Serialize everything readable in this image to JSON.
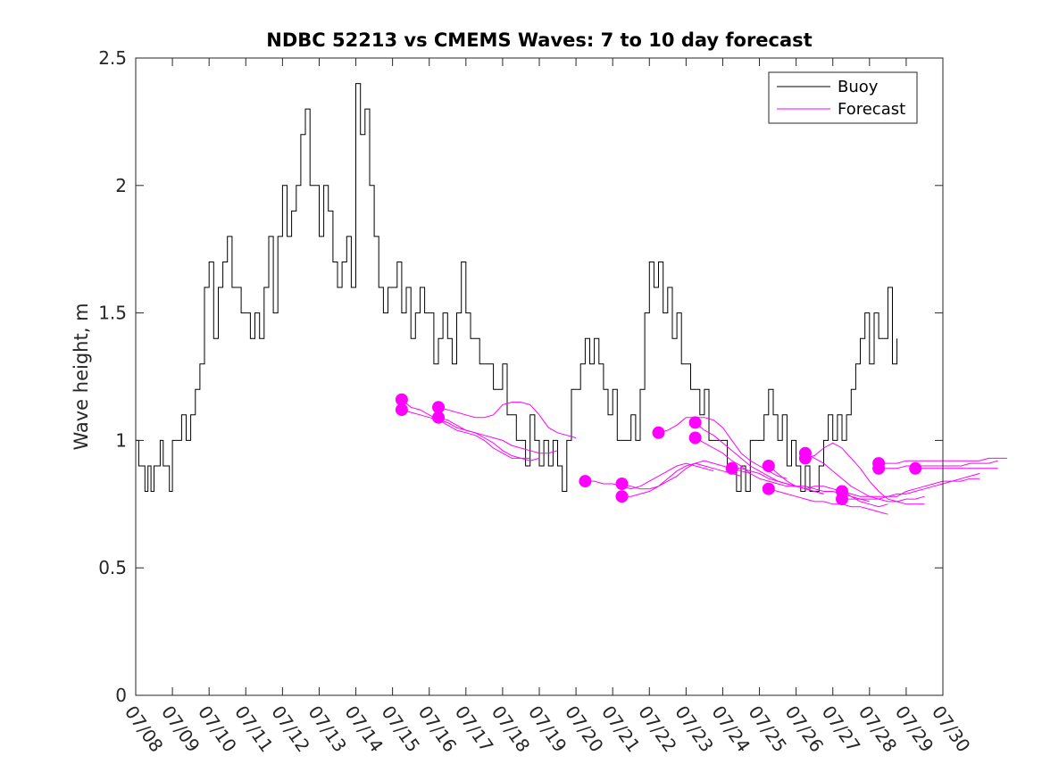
{
  "chart_data": {
    "type": "line",
    "title": "NDBC 52213 vs CMEMS Waves: 7 to 10 day forecast",
    "xlabel": "",
    "ylabel": "Wave height, m",
    "xlim": [
      "07/08",
      "07/30"
    ],
    "ylim": [
      0,
      2.5
    ],
    "grid": false,
    "legend_position": "top-right",
    "x_tick_labels": [
      "07/08",
      "07/09",
      "07/10",
      "07/11",
      "07/12",
      "07/13",
      "07/14",
      "07/15",
      "07/16",
      "07/17",
      "07/18",
      "07/19",
      "07/20",
      "07/21",
      "07/22",
      "07/23",
      "07/24",
      "07/25",
      "07/26",
      "07/27",
      "07/28",
      "07/29",
      "07/30"
    ],
    "y_ticks": [
      0,
      0.5,
      1,
      1.5,
      2,
      2.5
    ],
    "y_tick_labels": [
      "0",
      "0.5",
      "1",
      "1.5",
      "2",
      "2.5"
    ],
    "colors": {
      "buoy": "#000000",
      "forecast": "#ff00ff"
    },
    "legend": [
      {
        "label": "Buoy",
        "series": "buoy"
      },
      {
        "label": "Forecast",
        "series": "forecast"
      }
    ],
    "buoy": {
      "name": "Buoy",
      "points": [
        [
          "07/08 00:00",
          1.0
        ],
        [
          "07/08 02:00",
          0.9
        ],
        [
          "07/08 04:00",
          0.9
        ],
        [
          "07/08 06:00",
          0.8
        ],
        [
          "07/08 08:00",
          0.9
        ],
        [
          "07/08 10:00",
          0.8
        ],
        [
          "07/08 12:00",
          0.9
        ],
        [
          "07/08 14:00",
          0.9
        ],
        [
          "07/08 16:00",
          1.0
        ],
        [
          "07/08 18:00",
          0.9
        ],
        [
          "07/08 20:00",
          0.9
        ],
        [
          "07/08 22:00",
          0.8
        ],
        [
          "07/09 00:00",
          1.0
        ],
        [
          "07/09 03:00",
          1.0
        ],
        [
          "07/09 06:00",
          1.1
        ],
        [
          "07/09 09:00",
          1.0
        ],
        [
          "07/09 12:00",
          1.1
        ],
        [
          "07/09 15:00",
          1.2
        ],
        [
          "07/09 18:00",
          1.3
        ],
        [
          "07/09 21:00",
          1.6
        ],
        [
          "07/10 00:00",
          1.7
        ],
        [
          "07/10 03:00",
          1.4
        ],
        [
          "07/10 06:00",
          1.6
        ],
        [
          "07/10 09:00",
          1.7
        ],
        [
          "07/10 12:00",
          1.8
        ],
        [
          "07/10 15:00",
          1.6
        ],
        [
          "07/10 18:00",
          1.6
        ],
        [
          "07/10 21:00",
          1.5
        ],
        [
          "07/11 00:00",
          1.5
        ],
        [
          "07/11 03:00",
          1.4
        ],
        [
          "07/11 06:00",
          1.5
        ],
        [
          "07/11 09:00",
          1.4
        ],
        [
          "07/11 12:00",
          1.6
        ],
        [
          "07/11 15:00",
          1.8
        ],
        [
          "07/11 18:00",
          1.5
        ],
        [
          "07/11 21:00",
          1.8
        ],
        [
          "07/12 00:00",
          2.0
        ],
        [
          "07/12 03:00",
          1.8
        ],
        [
          "07/12 06:00",
          1.9
        ],
        [
          "07/12 09:00",
          2.0
        ],
        [
          "07/12 12:00",
          2.2
        ],
        [
          "07/12 15:00",
          2.3
        ],
        [
          "07/12 18:00",
          2.0
        ],
        [
          "07/12 21:00",
          2.0
        ],
        [
          "07/13 00:00",
          1.8
        ],
        [
          "07/13 03:00",
          2.0
        ],
        [
          "07/13 06:00",
          1.9
        ],
        [
          "07/13 09:00",
          1.7
        ],
        [
          "07/13 12:00",
          1.6
        ],
        [
          "07/13 15:00",
          1.7
        ],
        [
          "07/13 18:00",
          1.8
        ],
        [
          "07/13 21:00",
          1.6
        ],
        [
          "07/14 00:00",
          2.4
        ],
        [
          "07/14 03:00",
          2.2
        ],
        [
          "07/14 06:00",
          2.3
        ],
        [
          "07/14 09:00",
          2.0
        ],
        [
          "07/14 12:00",
          1.8
        ],
        [
          "07/14 15:00",
          1.6
        ],
        [
          "07/14 18:00",
          1.5
        ],
        [
          "07/14 21:00",
          1.6
        ],
        [
          "07/15 00:00",
          1.6
        ],
        [
          "07/15 03:00",
          1.7
        ],
        [
          "07/15 06:00",
          1.5
        ],
        [
          "07/15 09:00",
          1.6
        ],
        [
          "07/15 12:00",
          1.4
        ],
        [
          "07/15 15:00",
          1.5
        ],
        [
          "07/15 18:00",
          1.6
        ],
        [
          "07/15 21:00",
          1.5
        ],
        [
          "07/16 00:00",
          1.5
        ],
        [
          "07/16 03:00",
          1.3
        ],
        [
          "07/16 06:00",
          1.4
        ],
        [
          "07/16 09:00",
          1.5
        ],
        [
          "07/16 12:00",
          1.4
        ],
        [
          "07/16 15:00",
          1.3
        ],
        [
          "07/16 18:00",
          1.5
        ],
        [
          "07/16 21:00",
          1.7
        ],
        [
          "07/17 00:00",
          1.5
        ],
        [
          "07/17 03:00",
          1.4
        ],
        [
          "07/17 06:00",
          1.4
        ],
        [
          "07/17 09:00",
          1.3
        ],
        [
          "07/17 12:00",
          1.3
        ],
        [
          "07/17 15:00",
          1.3
        ],
        [
          "07/17 18:00",
          1.2
        ],
        [
          "07/17 21:00",
          1.2
        ],
        [
          "07/18 00:00",
          1.3
        ],
        [
          "07/18 03:00",
          1.1
        ],
        [
          "07/18 06:00",
          1.1
        ],
        [
          "07/18 09:00",
          1.0
        ],
        [
          "07/18 12:00",
          1.0
        ],
        [
          "07/18 15:00",
          0.9
        ],
        [
          "07/18 18:00",
          1.1
        ],
        [
          "07/18 21:00",
          1.0
        ],
        [
          "07/19 00:00",
          0.9
        ],
        [
          "07/19 03:00",
          1.0
        ],
        [
          "07/19 06:00",
          0.9
        ],
        [
          "07/19 09:00",
          1.0
        ],
        [
          "07/19 12:00",
          0.9
        ],
        [
          "07/19 15:00",
          0.8
        ],
        [
          "07/19 18:00",
          1.0
        ],
        [
          "07/19 21:00",
          1.2
        ],
        [
          "07/20 00:00",
          1.2
        ],
        [
          "07/20 03:00",
          1.3
        ],
        [
          "07/20 06:00",
          1.4
        ],
        [
          "07/20 09:00",
          1.3
        ],
        [
          "07/20 12:00",
          1.4
        ],
        [
          "07/20 15:00",
          1.3
        ],
        [
          "07/20 18:00",
          1.2
        ],
        [
          "07/20 21:00",
          1.1
        ],
        [
          "07/21 00:00",
          1.2
        ],
        [
          "07/21 03:00",
          1.0
        ],
        [
          "07/21 06:00",
          1.0
        ],
        [
          "07/21 09:00",
          1.0
        ],
        [
          "07/21 12:00",
          1.1
        ],
        [
          "07/21 15:00",
          1.0
        ],
        [
          "07/21 18:00",
          1.2
        ],
        [
          "07/21 21:00",
          1.5
        ],
        [
          "07/22 00:00",
          1.7
        ],
        [
          "07/22 03:00",
          1.6
        ],
        [
          "07/22 06:00",
          1.7
        ],
        [
          "07/22 09:00",
          1.5
        ],
        [
          "07/22 12:00",
          1.6
        ],
        [
          "07/22 15:00",
          1.4
        ],
        [
          "07/22 18:00",
          1.5
        ],
        [
          "07/22 21:00",
          1.3
        ],
        [
          "07/23 00:00",
          1.3
        ],
        [
          "07/23 03:00",
          1.2
        ],
        [
          "07/23 06:00",
          1.2
        ],
        [
          "07/23 09:00",
          1.1
        ],
        [
          "07/23 12:00",
          1.2
        ],
        [
          "07/23 15:00",
          1.0
        ],
        [
          "07/23 18:00",
          1.0
        ],
        [
          "07/23 21:00",
          1.0
        ],
        [
          "07/24 00:00",
          1.0
        ],
        [
          "07/24 03:00",
          0.9
        ],
        [
          "07/24 06:00",
          0.9
        ],
        [
          "07/24 09:00",
          0.8
        ],
        [
          "07/24 12:00",
          0.9
        ],
        [
          "07/24 15:00",
          0.8
        ],
        [
          "07/24 18:00",
          1.0
        ],
        [
          "07/24 21:00",
          1.0
        ],
        [
          "07/25 00:00",
          1.0
        ],
        [
          "07/25 03:00",
          1.1
        ],
        [
          "07/25 06:00",
          1.2
        ],
        [
          "07/25 09:00",
          1.1
        ],
        [
          "07/25 12:00",
          1.0
        ],
        [
          "07/25 15:00",
          1.1
        ],
        [
          "07/25 18:00",
          0.9
        ],
        [
          "07/25 21:00",
          1.0
        ],
        [
          "07/26 00:00",
          0.9
        ],
        [
          "07/26 03:00",
          0.8
        ],
        [
          "07/26 06:00",
          0.9
        ],
        [
          "07/26 09:00",
          0.8
        ],
        [
          "07/26 12:00",
          0.8
        ],
        [
          "07/26 15:00",
          0.9
        ],
        [
          "07/26 18:00",
          1.0
        ],
        [
          "07/26 21:00",
          1.1
        ],
        [
          "07/27 00:00",
          1.0
        ],
        [
          "07/27 03:00",
          1.1
        ],
        [
          "07/27 06:00",
          1.0
        ],
        [
          "07/27 09:00",
          1.1
        ],
        [
          "07/27 12:00",
          1.2
        ],
        [
          "07/27 15:00",
          1.3
        ],
        [
          "07/27 18:00",
          1.4
        ],
        [
          "07/27 21:00",
          1.5
        ],
        [
          "07/28 00:00",
          1.3
        ],
        [
          "07/28 03:00",
          1.5
        ],
        [
          "07/28 06:00",
          1.4
        ],
        [
          "07/28 09:00",
          1.4
        ],
        [
          "07/28 12:00",
          1.6
        ],
        [
          "07/28 15:00",
          1.3
        ],
        [
          "07/28 18:00",
          1.4
        ]
      ]
    },
    "forecast": {
      "name": "Forecast",
      "runs": [
        {
          "start": "07/15 06:00",
          "values": [
            1.16,
            1.13,
            1.12,
            1.1,
            1.08,
            1.06,
            1.04,
            1.03,
            1.02,
            1.0,
            0.97,
            0.95,
            0.93,
            0.93,
            0.92,
            0.93
          ]
        },
        {
          "start": "07/15 06:00",
          "values": [
            1.12,
            1.11,
            1.1,
            1.09,
            1.08,
            1.07,
            1.05,
            1.04,
            1.03,
            1.01,
            0.99,
            0.96,
            0.94,
            0.93,
            0.93
          ]
        },
        {
          "start": "07/16 06:00",
          "values": [
            1.13,
            1.12,
            1.11,
            1.1,
            1.09,
            1.09,
            1.1,
            1.14,
            1.15,
            1.15,
            1.14,
            1.1,
            1.05,
            1.03,
            1.02,
            1.01
          ]
        },
        {
          "start": "07/16 06:00",
          "values": [
            1.09,
            1.08,
            1.06,
            1.04,
            1.03,
            1.02,
            1.01,
            1.0,
            0.98,
            0.97,
            0.96,
            0.95,
            0.95,
            0.96
          ]
        },
        {
          "start": "07/20 06:00",
          "values": [
            0.84,
            0.84,
            0.83,
            0.83,
            0.82,
            0.81,
            0.82,
            0.84,
            0.86,
            0.88,
            0.9,
            0.91,
            0.9,
            0.89,
            0.88
          ]
        },
        {
          "start": "07/21 06:00",
          "values": [
            0.83,
            0.82,
            0.81,
            0.81,
            0.82,
            0.84,
            0.86,
            0.89,
            0.91,
            0.92,
            0.91,
            0.9,
            0.89,
            0.88,
            0.87
          ]
        },
        {
          "start": "07/21 06:00",
          "values": [
            0.78,
            0.78,
            0.79,
            0.8,
            0.82,
            0.85,
            0.88,
            0.9,
            0.91,
            0.9,
            0.89,
            0.88,
            0.87,
            0.86
          ]
        },
        {
          "start": "07/22 06:00",
          "values": [
            1.03,
            1.04,
            1.06,
            1.09,
            1.09,
            1.09,
            1.08,
            1.05,
            1.0,
            0.95,
            0.92,
            0.9,
            0.88,
            0.86,
            0.85
          ]
        },
        {
          "start": "07/23 06:00",
          "values": [
            1.07,
            1.04,
            1.02,
            0.99,
            0.96,
            0.93,
            0.9,
            0.88,
            0.86,
            0.84,
            0.83,
            0.82,
            0.81,
            0.8,
            0.79
          ]
        },
        {
          "start": "07/23 06:00",
          "values": [
            1.01,
            0.99,
            0.97,
            0.95,
            0.92,
            0.9,
            0.87,
            0.85,
            0.84,
            0.83,
            0.82,
            0.82,
            0.81,
            0.8,
            0.79
          ]
        },
        {
          "start": "07/24 06:00",
          "values": [
            0.89,
            0.89,
            0.88,
            0.87,
            0.85,
            0.84,
            0.83,
            0.82,
            0.82,
            0.81,
            0.8,
            0.8,
            0.79,
            0.78,
            0.77,
            0.76
          ]
        },
        {
          "start": "07/25 06:00",
          "values": [
            0.9,
            0.87,
            0.84,
            0.82,
            0.81,
            0.82,
            0.82,
            0.81,
            0.8,
            0.78,
            0.76,
            0.75,
            0.74,
            0.75
          ]
        },
        {
          "start": "07/25 06:00",
          "values": [
            0.81,
            0.8,
            0.79,
            0.78,
            0.77,
            0.76,
            0.76,
            0.75,
            0.75,
            0.74,
            0.74,
            0.73,
            0.72,
            0.71
          ]
        },
        {
          "start": "07/26 06:00",
          "values": [
            0.95,
            0.93,
            0.91,
            0.88,
            0.85,
            0.82,
            0.8,
            0.78,
            0.77,
            0.76,
            0.76,
            0.77,
            0.77,
            0.78
          ]
        },
        {
          "start": "07/26 06:00",
          "values": [
            0.93,
            0.94,
            0.97,
            0.99,
            0.97,
            0.93,
            0.89,
            0.84,
            0.8,
            0.77,
            0.76,
            0.75,
            0.75,
            0.75
          ]
        },
        {
          "start": "07/27 06:00",
          "values": [
            0.8,
            0.79,
            0.78,
            0.78,
            0.78,
            0.78,
            0.79,
            0.79,
            0.8,
            0.81,
            0.82,
            0.83,
            0.84,
            0.85,
            0.86,
            0.87
          ]
        },
        {
          "start": "07/27 06:00",
          "values": [
            0.77,
            0.77,
            0.77,
            0.77,
            0.77,
            0.78,
            0.78,
            0.8,
            0.81,
            0.82,
            0.83,
            0.84,
            0.84,
            0.84,
            0.85,
            0.85
          ]
        },
        {
          "start": "07/28 06:00",
          "values": [
            0.91,
            0.91,
            0.91,
            0.92,
            0.92,
            0.92,
            0.92,
            0.92,
            0.92,
            0.92,
            0.92,
            0.92,
            0.93,
            0.93,
            0.93
          ]
        },
        {
          "start": "07/28 06:00",
          "values": [
            0.89,
            0.89,
            0.89,
            0.9,
            0.9,
            0.9,
            0.9,
            0.9,
            0.9,
            0.9,
            0.91,
            0.91,
            0.91,
            0.92
          ]
        },
        {
          "start": "07/29 06:00",
          "values": [
            0.89,
            0.89,
            0.89,
            0.89,
            0.89,
            0.89,
            0.89,
            0.89,
            0.89,
            0.89
          ]
        }
      ]
    }
  }
}
